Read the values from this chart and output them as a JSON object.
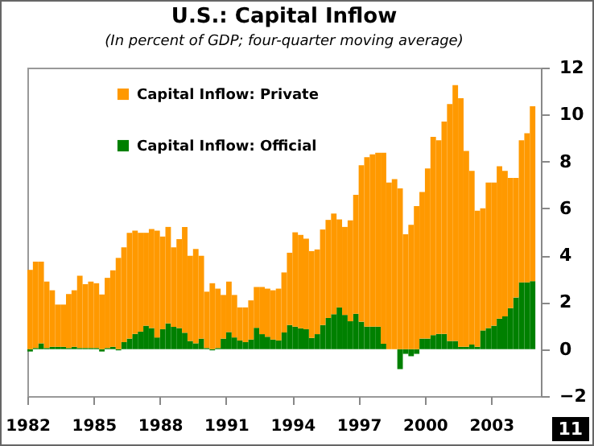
{
  "chart_data": {
    "type": "bar",
    "title": "U.S.: Capital Inflow",
    "subtitle": "(In percent of GDP; four-quarter moving average)",
    "x": [
      1982,
      1982.25,
      1982.5,
      1982.75,
      1983,
      1983.25,
      1983.5,
      1983.75,
      1984,
      1984.25,
      1984.5,
      1984.75,
      1985,
      1985.25,
      1985.5,
      1985.75,
      1986,
      1986.25,
      1986.5,
      1986.75,
      1987,
      1987.25,
      1987.5,
      1987.75,
      1988,
      1988.25,
      1988.5,
      1988.75,
      1989,
      1989.25,
      1989.5,
      1989.75,
      1990,
      1990.25,
      1990.5,
      1990.75,
      1991,
      1991.25,
      1991.5,
      1991.75,
      1992,
      1992.25,
      1992.5,
      1992.75,
      1993,
      1993.25,
      1993.5,
      1993.75,
      1994,
      1994.25,
      1994.5,
      1994.75,
      1995,
      1995.25,
      1995.5,
      1995.75,
      1996,
      1996.25,
      1996.5,
      1996.75,
      1997,
      1997.25,
      1997.5,
      1997.75,
      1998,
      1998.25,
      1998.5,
      1998.75,
      1999,
      1999.25,
      1999.5,
      1999.75,
      2000,
      2000.25,
      2000.5,
      2000.75,
      2001,
      2001.25,
      2001.5,
      2001.75,
      2002,
      2002.25,
      2002.5,
      2002.75,
      2003,
      2003.25,
      2003.5,
      2003.75,
      2004,
      2004.25,
      2004.5,
      2004.75
    ],
    "stacked": true,
    "series": [
      {
        "name": "Capital Inflow: Official",
        "color": "#008000",
        "values": [
          -0.1,
          0.05,
          0.25,
          0.05,
          0.1,
          0.1,
          0.1,
          0.05,
          0.1,
          0.05,
          0.05,
          0.05,
          0.05,
          -0.1,
          0.05,
          0.1,
          -0.05,
          0.3,
          0.45,
          0.65,
          0.75,
          1.0,
          0.9,
          0.5,
          0.85,
          1.1,
          0.95,
          0.9,
          0.7,
          0.35,
          0.25,
          0.45,
          0.05,
          -0.05,
          0.05,
          0.45,
          0.73,
          0.5,
          0.37,
          0.3,
          0.41,
          0.91,
          0.64,
          0.53,
          0.41,
          0.37,
          0.71,
          1.03,
          0.96,
          0.89,
          0.85,
          0.48,
          0.64,
          1.03,
          1.33,
          1.49,
          1.78,
          1.46,
          1.19,
          1.51,
          1.17,
          0.96,
          0.96,
          0.96,
          0.23,
          0,
          0,
          -0.85,
          -0.2,
          -0.3,
          -0.2,
          0.45,
          0.45,
          0.6,
          0.65,
          0.65,
          0.35,
          0.35,
          0.1,
          0.1,
          0.2,
          0.1,
          0.8,
          0.9,
          1.0,
          1.3,
          1.4,
          1.75,
          2.2,
          2.85,
          2.85,
          2.9
        ]
      },
      {
        "name": "Capital Inflow: Private",
        "color": "#ff9900",
        "values": [
          3.38,
          3.68,
          3.48,
          2.83,
          2.41,
          1.8,
          1.8,
          2.3,
          2.41,
          3.08,
          2.72,
          2.83,
          2.76,
          2.33,
          2.99,
          3.26,
          3.89,
          4.04,
          4.51,
          4.4,
          4.21,
          3.96,
          4.22,
          4.55,
          3.95,
          4.11,
          3.39,
          3.79,
          4.51,
          3.63,
          4.02,
          3.53,
          2.4,
          2.81,
          2.53,
          1.86,
          2.15,
          1.81,
          1.41,
          1.48,
          1.67,
          1.74,
          2.01,
          2.05,
          2.1,
          2.21,
          2.56,
          3.08,
          4.02,
          3.98,
          3.86,
          3.7,
          3.61,
          4.07,
          4.18,
          4.29,
          3.75,
          3.75,
          4.3,
          5.07,
          6.67,
          7.22,
          7.34,
          7.41,
          8.14,
          7.1,
          7.25,
          6.85,
          4.9,
          5.3,
          6.1,
          6.25,
          7.25,
          8.45,
          8.25,
          9.05,
          10.1,
          10.9,
          10.6,
          8.35,
          7.4,
          5.8,
          5.2,
          6.2,
          6.1,
          6.5,
          6.2,
          5.55,
          5.1,
          6.05,
          6.35,
          7.45
        ]
      }
    ],
    "xlim": [
      1982,
      2005.25
    ],
    "xticks": [
      1982,
      1985,
      1988,
      1991,
      1994,
      1997,
      2000,
      2003
    ],
    "ylim": [
      -2,
      12
    ],
    "yticks": [
      -2,
      0,
      2,
      4,
      6,
      8,
      10,
      12
    ],
    "legend": "top left",
    "annotations": [
      "11"
    ]
  }
}
